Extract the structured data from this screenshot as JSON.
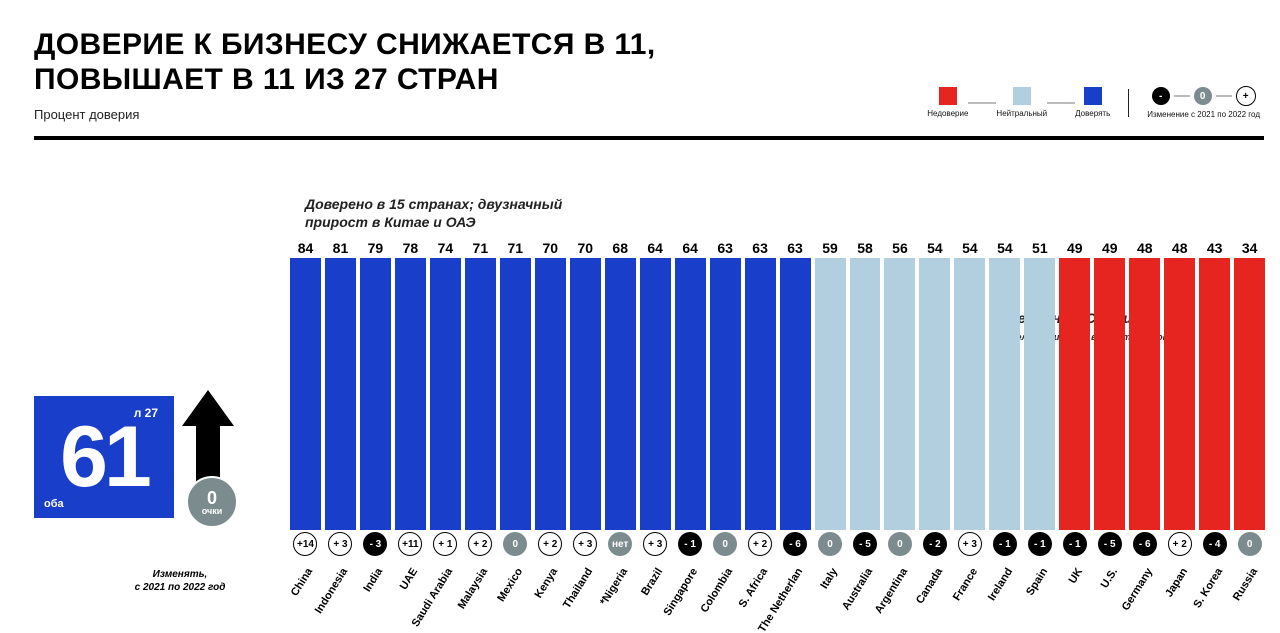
{
  "title_line1": "ДОВЕРИЕ К БИЗНЕСУ СНИЖАЕТСЯ В 11,",
  "title_line2": "ПОВЫШАЕТ В 11 ИЗ 27 СТРАН",
  "subtitle": "Процент доверия",
  "legend": {
    "distrust": "Недоверие",
    "neutral": "Нейтральный",
    "trust": "Доверять",
    "change": "Изменение с 2021 по 2022 год"
  },
  "annotation_left": "Доверено в 15 странах; двузначный прирост в Китае и ОАЭ",
  "annotation_right_main": "Германии, США и",
  "annotation_right_sub": "Великобритания впадает в недоверие",
  "global": {
    "value": "61",
    "top_label": "л 27",
    "bottom_label": "оба",
    "arrow_value": "0",
    "arrow_word": "очки",
    "change_label_1": "Изменять,",
    "change_label_2": "с 2021 по 2022 год"
  },
  "colors": {
    "distrust": "#e62420",
    "neutral": "#b1cfde",
    "trust": "#183eca",
    "chg_neg": "#000000",
    "chg_zero": "#7c8b8e",
    "chg_pos": "#ffffff",
    "chg_pos_border": "#000000",
    "bigbox": "#183eca",
    "arrow": "#000000"
  },
  "chart": {
    "max_value": 100,
    "bars": [
      {
        "label": "China",
        "value": 84,
        "cat": "trust",
        "change": "+14",
        "chgType": "pos"
      },
      {
        "label": "Indonesia",
        "value": 81,
        "cat": "trust",
        "change": "+ 3",
        "chgType": "pos"
      },
      {
        "label": "India",
        "value": 79,
        "cat": "trust",
        "change": "- 3",
        "chgType": "neg"
      },
      {
        "label": "UAE",
        "value": 78,
        "cat": "trust",
        "change": "+11",
        "chgType": "pos"
      },
      {
        "label": "Saudi Arabia",
        "value": 74,
        "cat": "trust",
        "change": "+ 1",
        "chgType": "pos"
      },
      {
        "label": "Malaysia",
        "value": 71,
        "cat": "trust",
        "change": "+ 2",
        "chgType": "pos"
      },
      {
        "label": "Mexico",
        "value": 71,
        "cat": "trust",
        "change": "0",
        "chgType": "zero"
      },
      {
        "label": "Kenya",
        "value": 70,
        "cat": "trust",
        "change": "+ 2",
        "chgType": "pos"
      },
      {
        "label": "Thailand",
        "value": 70,
        "cat": "trust",
        "change": "+ 3",
        "chgType": "pos"
      },
      {
        "label": "*Nigeria",
        "value": 68,
        "cat": "trust",
        "change": "нет",
        "chgType": "zero"
      },
      {
        "label": "Brazil",
        "value": 64,
        "cat": "trust",
        "change": "+ 3",
        "chgType": "pos"
      },
      {
        "label": "Singapore",
        "value": 64,
        "cat": "trust",
        "change": "- 1",
        "chgType": "neg"
      },
      {
        "label": "Colombia",
        "value": 63,
        "cat": "trust",
        "change": "0",
        "chgType": "zero"
      },
      {
        "label": "S. Africa",
        "value": 63,
        "cat": "trust",
        "change": "+ 2",
        "chgType": "pos"
      },
      {
        "label": "The Netherlan",
        "value": 63,
        "cat": "trust",
        "change": "- 6",
        "chgType": "neg"
      },
      {
        "label": "Italy",
        "value": 59,
        "cat": "neutral",
        "change": "0",
        "chgType": "zero"
      },
      {
        "label": "Australia",
        "value": 58,
        "cat": "neutral",
        "change": "- 5",
        "chgType": "neg"
      },
      {
        "label": "Argentina",
        "value": 56,
        "cat": "neutral",
        "change": "0",
        "chgType": "zero"
      },
      {
        "label": "Canada",
        "value": 54,
        "cat": "neutral",
        "change": "- 2",
        "chgType": "neg"
      },
      {
        "label": "France",
        "value": 54,
        "cat": "neutral",
        "change": "+ 3",
        "chgType": "pos"
      },
      {
        "label": "Ireland",
        "value": 54,
        "cat": "neutral",
        "change": "- 1",
        "chgType": "neg"
      },
      {
        "label": "Spain",
        "value": 51,
        "cat": "neutral",
        "change": "- 1",
        "chgType": "neg"
      },
      {
        "label": "UK",
        "value": 49,
        "cat": "distrust",
        "change": "- 1",
        "chgType": "neg"
      },
      {
        "label": "U.S.",
        "value": 49,
        "cat": "distrust",
        "change": "- 5",
        "chgType": "neg"
      },
      {
        "label": "Germany",
        "value": 48,
        "cat": "distrust",
        "change": "- 6",
        "chgType": "neg"
      },
      {
        "label": "Japan",
        "value": 48,
        "cat": "distrust",
        "change": "+ 2",
        "chgType": "pos"
      },
      {
        "label": "S. Korea",
        "value": 43,
        "cat": "distrust",
        "change": "- 4",
        "chgType": "neg"
      },
      {
        "label": "Russia",
        "value": 34,
        "cat": "distrust",
        "change": "0",
        "chgType": "zero"
      }
    ]
  }
}
